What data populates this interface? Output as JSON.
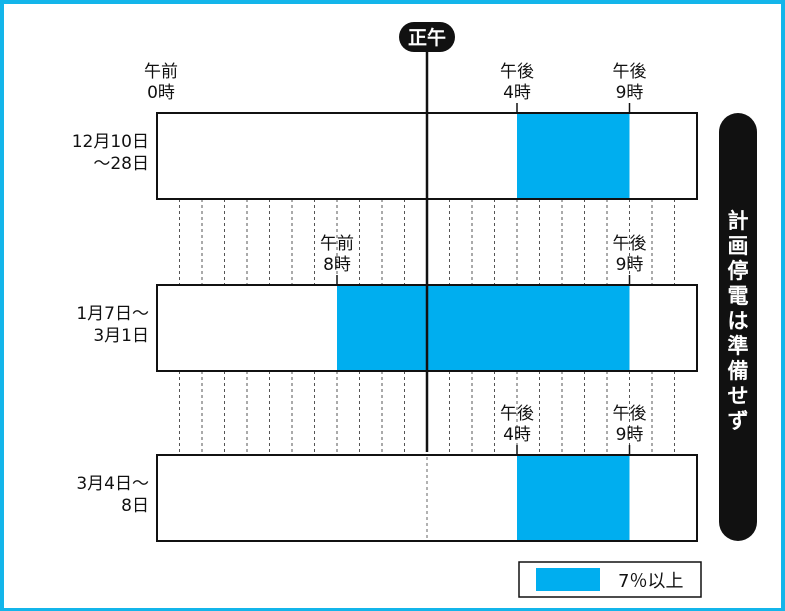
{
  "chart_data": {
    "type": "bar",
    "orientation": "horizontal-timeline",
    "x_range_hours": [
      0,
      24
    ],
    "noon_label": "正午",
    "side_note": "計画停電は準備せず",
    "legend": {
      "label": "7％以上",
      "color": "#00aeef",
      "position": "bottom-right"
    },
    "colors": {
      "bar": "#00aeef",
      "frame": "#13b5ea",
      "pill": "#111111"
    },
    "rows": [
      {
        "period": [
          "12月10日",
          "～28日"
        ],
        "start_hour": 16,
        "end_hour": 21,
        "labels": [
          {
            "hour": 0,
            "lines": [
              "午前",
              "0時"
            ]
          },
          {
            "hour": 16,
            "lines": [
              "午後",
              "4時"
            ]
          },
          {
            "hour": 21,
            "lines": [
              "午後",
              "9時"
            ]
          }
        ]
      },
      {
        "period": [
          "1月7日～",
          "3月1日"
        ],
        "start_hour": 8,
        "end_hour": 21,
        "labels": [
          {
            "hour": 8,
            "lines": [
              "午前",
              "8時"
            ]
          },
          {
            "hour": 21,
            "lines": [
              "午後",
              "9時"
            ]
          }
        ]
      },
      {
        "period": [
          "3月4日～",
          "8日"
        ],
        "start_hour": 16,
        "end_hour": 21,
        "labels": [
          {
            "hour": 16,
            "lines": [
              "午後",
              "4時"
            ]
          },
          {
            "hour": 21,
            "lines": [
              "午後",
              "9時"
            ]
          }
        ]
      }
    ]
  }
}
